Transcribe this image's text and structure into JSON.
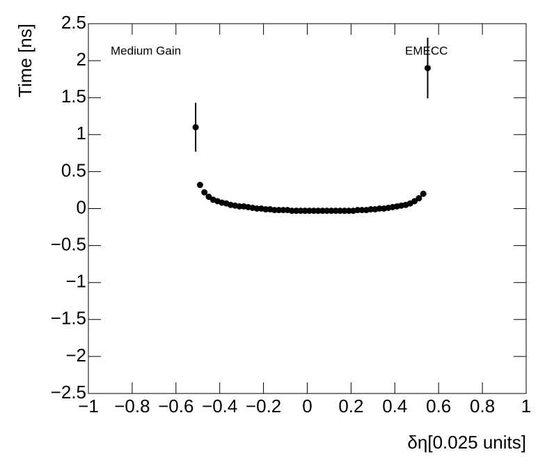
{
  "chart_data": {
    "type": "scatter",
    "annotations": [
      "Medium Gain",
      "EMECC"
    ],
    "xlabel": "δη[0.025 units]",
    "ylabel": "Time [ns]",
    "color": "#000000",
    "x": [
      -0.51,
      -0.49,
      -0.47,
      -0.45,
      -0.43,
      -0.41,
      -0.39,
      -0.37,
      -0.35,
      -0.33,
      -0.31,
      -0.29,
      -0.27,
      -0.25,
      -0.23,
      -0.21,
      -0.19,
      -0.17,
      -0.15,
      -0.13,
      -0.11,
      -0.09,
      -0.07,
      -0.05,
      -0.03,
      -0.01,
      0.01,
      0.03,
      0.05,
      0.07,
      0.09,
      0.11,
      0.13,
      0.15,
      0.17,
      0.19,
      0.21,
      0.23,
      0.25,
      0.27,
      0.29,
      0.31,
      0.33,
      0.35,
      0.37,
      0.39,
      0.41,
      0.43,
      0.45,
      0.47,
      0.49,
      0.51,
      0.53,
      0.55
    ],
    "values": [
      1.1,
      0.32,
      0.22,
      0.16,
      0.12,
      0.1,
      0.08,
      0.07,
      0.05,
      0.04,
      0.03,
      0.03,
      0.02,
      0.01,
      0,
      0,
      -0.01,
      -0.01,
      -0.02,
      -0.02,
      -0.02,
      -0.02,
      -0.03,
      -0.03,
      -0.03,
      -0.03,
      -0.03,
      -0.03,
      -0.03,
      -0.03,
      -0.03,
      -0.03,
      -0.03,
      -0.03,
      -0.03,
      -0.03,
      -0.03,
      -0.02,
      -0.02,
      -0.02,
      -0.01,
      -0.01,
      0,
      0,
      0.01,
      0.02,
      0.03,
      0.04,
      0.05,
      0.07,
      0.1,
      0.14,
      0.2,
      1.9
    ],
    "errors": [
      0.33,
      0.01,
      0.01,
      0.01,
      0.01,
      0.01,
      0.01,
      0.01,
      0.01,
      0.01,
      0.01,
      0.01,
      0.01,
      0.01,
      0.01,
      0.01,
      0.01,
      0.01,
      0.01,
      0.01,
      0.01,
      0.01,
      0.01,
      0.01,
      0.01,
      0.01,
      0.01,
      0.01,
      0.01,
      0.01,
      0.01,
      0.01,
      0.01,
      0.01,
      0.01,
      0.01,
      0.01,
      0.01,
      0.01,
      0.01,
      0.01,
      0.01,
      0.01,
      0.01,
      0.01,
      0.01,
      0.01,
      0.01,
      0.01,
      0.01,
      0.01,
      0.01,
      0.01,
      0.41
    ],
    "xlim": [
      -1,
      1
    ],
    "ylim": [
      -2.5,
      2.5
    ],
    "xticks": [
      {
        "value": -1,
        "label": "−1"
      },
      {
        "value": -0.8,
        "label": "−0.8"
      },
      {
        "value": -0.6,
        "label": "−0.6"
      },
      {
        "value": -0.4,
        "label": "−0.4"
      },
      {
        "value": -0.2,
        "label": "−0.2"
      },
      0,
      0.2,
      0.4,
      0.6,
      0.8,
      1
    ],
    "yticks": [
      {
        "value": -2.5,
        "label": "−2.5"
      },
      {
        "value": -2,
        "label": "−2"
      },
      {
        "value": -1.5,
        "label": "−1.5"
      },
      {
        "value": -1,
        "label": "−1"
      },
      {
        "value": -0.5,
        "label": "−0.5"
      },
      0,
      0.5,
      1,
      1.5,
      2,
      2.5
    ]
  }
}
